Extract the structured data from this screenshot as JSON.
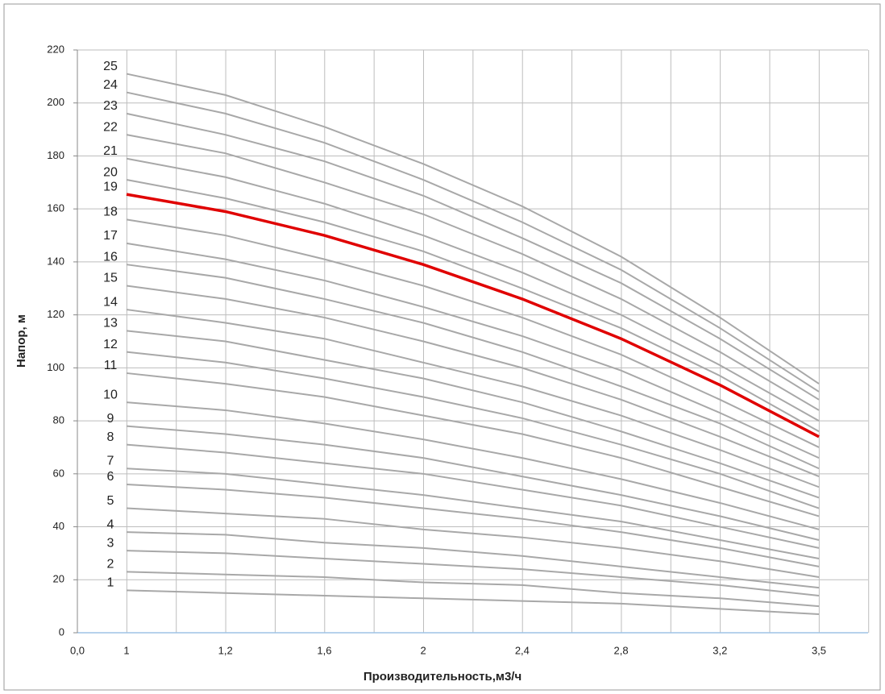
{
  "chart_data": {
    "type": "line",
    "x_label": "Производительность,м3/ч",
    "y_label": "Напор, м",
    "categories": [
      "0,0",
      "1",
      "1,2",
      "1,6",
      "2",
      "2,4",
      "2,8",
      "3,2",
      "3,5"
    ],
    "ylim": [
      0,
      220
    ],
    "yticks": [
      0,
      20,
      40,
      60,
      80,
      100,
      120,
      140,
      160,
      180,
      200,
      220
    ],
    "grid": true,
    "series": [
      {
        "name": "1",
        "color": "#a8a8a8",
        "values": [
          null,
          16,
          15,
          14,
          13,
          12,
          11,
          9,
          7
        ]
      },
      {
        "name": "2",
        "color": "#a8a8a8",
        "values": [
          null,
          23,
          22,
          21,
          19,
          18,
          15,
          13,
          10
        ]
      },
      {
        "name": "3",
        "color": "#a8a8a8",
        "values": [
          null,
          31,
          30,
          28,
          26,
          24,
          21,
          18,
          14
        ]
      },
      {
        "name": "4",
        "color": "#a8a8a8",
        "values": [
          null,
          38,
          37,
          34,
          32,
          29,
          25,
          21,
          17
        ]
      },
      {
        "name": "5",
        "color": "#a8a8a8",
        "values": [
          null,
          47,
          45,
          43,
          39,
          36,
          32,
          27,
          21
        ]
      },
      {
        "name": "6",
        "color": "#a8a8a8",
        "values": [
          null,
          56,
          54,
          51,
          47,
          43,
          38,
          32,
          25
        ]
      },
      {
        "name": "7",
        "color": "#a8a8a8",
        "values": [
          null,
          62,
          60,
          56,
          52,
          47,
          42,
          35,
          28
        ]
      },
      {
        "name": "8",
        "color": "#a8a8a8",
        "values": [
          null,
          71,
          68,
          64,
          60,
          54,
          48,
          40,
          32
        ]
      },
      {
        "name": "9",
        "color": "#a8a8a8",
        "values": [
          null,
          78,
          75,
          71,
          66,
          59,
          52,
          44,
          35
        ]
      },
      {
        "name": "10",
        "color": "#a8a8a8",
        "values": [
          null,
          87,
          84,
          79,
          73,
          66,
          58,
          49,
          39
        ]
      },
      {
        "name": "11",
        "color": "#a8a8a8",
        "values": [
          null,
          98,
          94,
          89,
          82,
          75,
          66,
          55,
          44
        ]
      },
      {
        "name": "12",
        "color": "#a8a8a8",
        "values": [
          null,
          106,
          102,
          96,
          89,
          81,
          71,
          60,
          47
        ]
      },
      {
        "name": "13",
        "color": "#a8a8a8",
        "values": [
          null,
          114,
          110,
          103,
          96,
          87,
          76,
          64,
          51
        ]
      },
      {
        "name": "14",
        "color": "#a8a8a8",
        "values": [
          null,
          122,
          117,
          111,
          102,
          93,
          82,
          69,
          55
        ]
      },
      {
        "name": "15",
        "color": "#a8a8a8",
        "values": [
          null,
          131,
          126,
          119,
          110,
          100,
          88,
          74,
          59
        ]
      },
      {
        "name": "16",
        "color": "#a8a8a8",
        "values": [
          null,
          139,
          134,
          126,
          117,
          106,
          93,
          79,
          62
        ]
      },
      {
        "name": "17",
        "color": "#a8a8a8",
        "values": [
          null,
          147,
          141,
          133,
          123,
          112,
          99,
          83,
          66
        ]
      },
      {
        "name": "18",
        "color": "#a8a8a8",
        "values": [
          null,
          156,
          150,
          141,
          131,
          119,
          105,
          88,
          70
        ]
      },
      {
        "name": "19",
        "color": "#e00000",
        "values": [
          null,
          165.5,
          159,
          150,
          139,
          126,
          111,
          93.5,
          74
        ]
      },
      {
        "name": "20",
        "color": "#a8a8a8",
        "values": [
          null,
          171,
          164,
          155,
          144,
          130,
          115,
          97,
          76
        ]
      },
      {
        "name": "21",
        "color": "#a8a8a8",
        "values": [
          null,
          179,
          172,
          162,
          150,
          136,
          120,
          101,
          80
        ]
      },
      {
        "name": "22",
        "color": "#a8a8a8",
        "values": [
          null,
          188,
          181,
          170,
          158,
          143,
          126,
          106,
          84
        ]
      },
      {
        "name": "23",
        "color": "#a8a8a8",
        "values": [
          null,
          196,
          188,
          178,
          165,
          149,
          132,
          111,
          88
        ]
      },
      {
        "name": "24",
        "color": "#a8a8a8",
        "values": [
          null,
          204,
          196,
          185,
          171,
          155,
          137,
          115,
          91
        ]
      },
      {
        "name": "25",
        "color": "#a8a8a8",
        "values": [
          null,
          211,
          203,
          191,
          177,
          161,
          142,
          119,
          94
        ]
      }
    ]
  }
}
